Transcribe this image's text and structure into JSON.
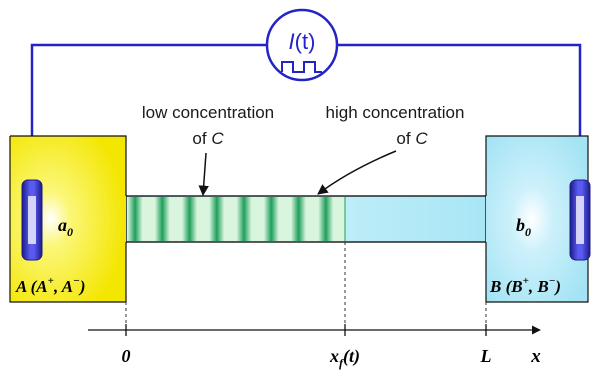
{
  "current_source": {
    "label_main": "I",
    "label_paren": "(t)",
    "color": "#2323c8"
  },
  "reservoir_a": {
    "concentration_main": "a",
    "concentration_sub": "0",
    "species_prefix": "A (A",
    "species_sup1": "+",
    "species_mid": ",  A",
    "species_sup2": "−",
    "species_suffix": ")",
    "color": "#f7f000"
  },
  "reservoir_b": {
    "concentration_main": "b",
    "concentration_sub": "0",
    "species_prefix": "B (B",
    "species_sup1": "+",
    "species_mid": ",  B",
    "species_sup2": "−",
    "species_suffix": ")",
    "color": "#a8e6f5"
  },
  "annotations": {
    "low_line1": "low concentration",
    "low_of": "of ",
    "low_species": "C",
    "high_line1": "high concentration",
    "high_of": "of ",
    "high_species": "C"
  },
  "axis": {
    "origin_label": "0",
    "front_main": "x",
    "front_sub": "f",
    "front_paren": "(t)",
    "end_label": "L",
    "axis_label": "x"
  },
  "bands": {
    "count": 8,
    "dark_color": "#1f9e5a",
    "light_color": "#d9f5de"
  }
}
